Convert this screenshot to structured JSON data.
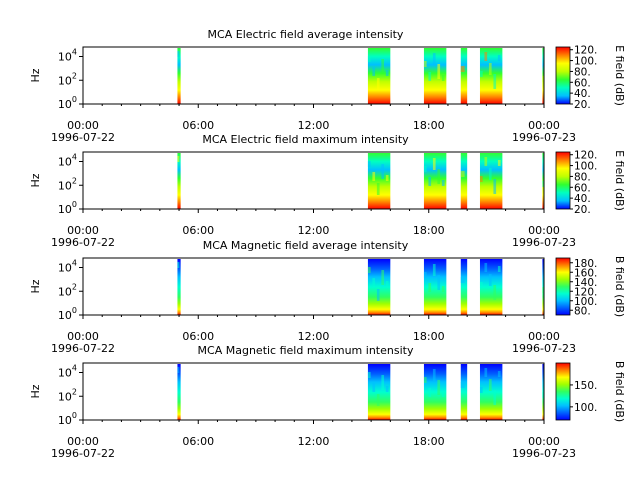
{
  "palette": {
    "electric": [
      "#0000ff",
      "#00c0ff",
      "#00ffc0",
      "#30ff30",
      "#c0ff00",
      "#ffff00",
      "#ff8000",
      "#ff0000"
    ],
    "magnetic": [
      "#0000ff",
      "#0060ff",
      "#00c0ff",
      "#00ffd0",
      "#30ff60",
      "#a0ff00",
      "#ffff00",
      "#ff8000",
      "#ff0000"
    ]
  },
  "chart_data": [
    {
      "type": "heatmap",
      "title": "MCA  Electric field average intensity",
      "ylabel": "Hz",
      "y_scale": "log",
      "yticks": [
        {
          "base": "10",
          "exp": "0"
        },
        {
          "base": "10",
          "exp": "2"
        },
        {
          "base": "10",
          "exp": "4"
        }
      ],
      "x_range": [
        "1996-07-22 00:00",
        "1996-07-23 00:00"
      ],
      "xticks": [
        {
          "time": "00:00",
          "date": "1996-07-22"
        },
        {
          "time": "06:00",
          "date": ""
        },
        {
          "time": "12:00",
          "date": ""
        },
        {
          "time": "18:00",
          "date": ""
        },
        {
          "time": "00:00",
          "date": "1996-07-23"
        }
      ],
      "colorbar": {
        "label": "E field (dB)",
        "ticks": [
          "120.",
          "100.",
          "80.",
          "60.",
          "40.",
          "20."
        ],
        "range": [
          20,
          125
        ]
      },
      "data_segments": [
        {
          "start": "04:55",
          "end": "05:05"
        },
        {
          "start": "14:50",
          "end": "16:00"
        },
        {
          "start": "17:45",
          "end": "18:55"
        },
        {
          "start": "19:40",
          "end": "20:00"
        },
        {
          "start": "20:40",
          "end": "21:50"
        },
        {
          "start": "23:55",
          "end": "24:00"
        }
      ]
    },
    {
      "type": "heatmap",
      "title": "MCA  Electric field maximum intensity",
      "ylabel": "Hz",
      "y_scale": "log",
      "yticks": [
        {
          "base": "10",
          "exp": "0"
        },
        {
          "base": "10",
          "exp": "2"
        },
        {
          "base": "10",
          "exp": "4"
        }
      ],
      "x_range": [
        "1996-07-22 00:00",
        "1996-07-23 00:00"
      ],
      "xticks": [
        {
          "time": "00:00",
          "date": "1996-07-22"
        },
        {
          "time": "06:00",
          "date": ""
        },
        {
          "time": "12:00",
          "date": ""
        },
        {
          "time": "18:00",
          "date": ""
        },
        {
          "time": "00:00",
          "date": "1996-07-23"
        }
      ],
      "colorbar": {
        "label": "E field (dB)",
        "ticks": [
          "120.",
          "100.",
          "80.",
          "60.",
          "40.",
          "20."
        ],
        "range": [
          20,
          125
        ]
      },
      "data_segments": [
        {
          "start": "04:55",
          "end": "05:05"
        },
        {
          "start": "14:50",
          "end": "16:00"
        },
        {
          "start": "17:45",
          "end": "18:55"
        },
        {
          "start": "19:40",
          "end": "20:00"
        },
        {
          "start": "20:40",
          "end": "21:50"
        },
        {
          "start": "23:55",
          "end": "24:00"
        }
      ]
    },
    {
      "type": "heatmap",
      "title": "MCA  Magnetic field average intensity",
      "ylabel": "Hz",
      "y_scale": "log",
      "yticks": [
        {
          "base": "10",
          "exp": "0"
        },
        {
          "base": "10",
          "exp": "2"
        },
        {
          "base": "10",
          "exp": "4"
        }
      ],
      "x_range": [
        "1996-07-22 00:00",
        "1996-07-23 00:00"
      ],
      "xticks": [
        {
          "time": "00:00",
          "date": "1996-07-22"
        },
        {
          "time": "06:00",
          "date": ""
        },
        {
          "time": "12:00",
          "date": ""
        },
        {
          "time": "18:00",
          "date": ""
        },
        {
          "time": "00:00",
          "date": "1996-07-23"
        }
      ],
      "colorbar": {
        "label": "B field (dB)",
        "ticks": [
          "180.",
          "160.",
          "140.",
          "120.",
          "100.",
          "80."
        ],
        "range": [
          70,
          190
        ]
      },
      "data_segments": [
        {
          "start": "04:55",
          "end": "05:05"
        },
        {
          "start": "14:50",
          "end": "16:00"
        },
        {
          "start": "17:45",
          "end": "18:55"
        },
        {
          "start": "19:40",
          "end": "20:00"
        },
        {
          "start": "20:40",
          "end": "21:50"
        },
        {
          "start": "23:55",
          "end": "24:00"
        }
      ]
    },
    {
      "type": "heatmap",
      "title": "MCA  Magnetic field maximum intensity",
      "ylabel": "Hz",
      "y_scale": "log",
      "yticks": [
        {
          "base": "10",
          "exp": "0"
        },
        {
          "base": "10",
          "exp": "2"
        },
        {
          "base": "10",
          "exp": "4"
        }
      ],
      "x_range": [
        "1996-07-22 00:00",
        "1996-07-23 00:00"
      ],
      "xticks": [
        {
          "time": "00:00",
          "date": "1996-07-22"
        },
        {
          "time": "06:00",
          "date": ""
        },
        {
          "time": "12:00",
          "date": ""
        },
        {
          "time": "18:00",
          "date": ""
        },
        {
          "time": "00:00",
          "date": "1996-07-23"
        }
      ],
      "colorbar": {
        "label": "B field (dB)",
        "ticks": [
          "150.",
          "100."
        ],
        "range": [
          70,
          200
        ]
      },
      "data_segments": [
        {
          "start": "04:55",
          "end": "05:05"
        },
        {
          "start": "14:50",
          "end": "16:00"
        },
        {
          "start": "17:45",
          "end": "18:55"
        },
        {
          "start": "19:40",
          "end": "20:00"
        },
        {
          "start": "20:40",
          "end": "21:50"
        },
        {
          "start": "23:55",
          "end": "24:00"
        }
      ]
    }
  ]
}
